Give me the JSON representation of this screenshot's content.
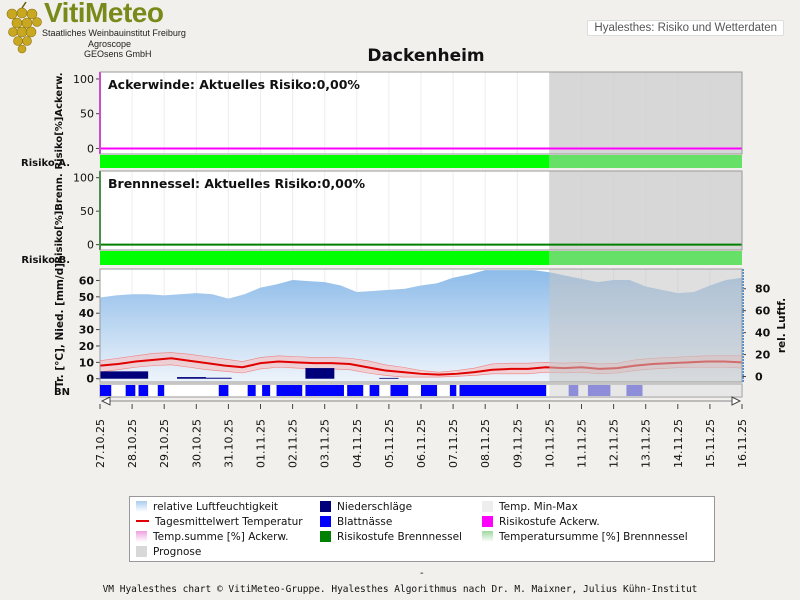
{
  "header": {
    "logo_title": "VitiMeteo",
    "logo_lines": [
      "Staatliches Weinbauinstitut Freiburg",
      "Agroscope",
      "GEOsens GmbH"
    ],
    "badge": "Hyalesthes: Risiko und Wetterdaten"
  },
  "colors": {
    "risk_green": "#00ff00",
    "forecast_green": "#66e066",
    "ackerwinde_magenta": "#ff00ff",
    "brennnessel_green": "#008000",
    "humidity_blue": "#9fc4ec",
    "precip_navy": "#00007a",
    "leafwet_blue": "#0000ff",
    "temp_red": "#e00000",
    "temp_band": "#f6bcbc",
    "forecast_shade": "#d0d0d0"
  },
  "chart_data": {
    "type": "line",
    "title": "Dackenheim",
    "dates": [
      "27.10.25",
      "28.10.25",
      "29.10.25",
      "30.10.25",
      "31.10.25",
      "01.11.25",
      "02.11.25",
      "03.11.25",
      "04.11.25",
      "05.11.25",
      "06.11.25",
      "07.11.25",
      "08.11.25",
      "09.11.25",
      "10.11.25",
      "11.11.25",
      "12.11.25",
      "13.11.25",
      "14.11.25",
      "15.11.25",
      "16.11.25"
    ],
    "forecast_start": "10.11.25",
    "panels": [
      {
        "title": "Ackerwinde: Aktuelles Risiko:0,00%",
        "ylabel": "Risiko[%]Ackerw.",
        "risk_row_label": "Risiko A.",
        "yticks": [
          0,
          50,
          100
        ],
        "ylim": [
          -8,
          110
        ],
        "risk_values": [
          0,
          0,
          0,
          0,
          0,
          0,
          0,
          0,
          0,
          0,
          0,
          0,
          0,
          0,
          0,
          0,
          0,
          0,
          0,
          0,
          0
        ]
      },
      {
        "title": "Brennnessel: Aktuelles Risiko:0,00%",
        "ylabel": "Risiko[%]Brenn.",
        "risk_row_label": "Risiko B.",
        "yticks": [
          0,
          50,
          100
        ],
        "ylim": [
          -8,
          110
        ],
        "risk_values": [
          0,
          0,
          0,
          0,
          0,
          0,
          0,
          0,
          0,
          0,
          0,
          0,
          0,
          0,
          0,
          0,
          0,
          0,
          0,
          0,
          0
        ]
      }
    ],
    "weather": {
      "ylabel_left": "Tr. [°C], Nied. [mm/d]",
      "ylabel_right": "rel. Luftf.",
      "yticks_left": [
        0,
        10,
        20,
        30,
        40,
        50,
        60
      ],
      "ylim_left": [
        -2,
        67
      ],
      "yticks_right": [
        0,
        20,
        40,
        60,
        80
      ],
      "ylim_right": [
        -5,
        98
      ],
      "bn_label": "BN",
      "humidity_x": [
        0.0,
        0.5,
        1.0,
        1.5,
        2.0,
        2.5,
        3.0,
        3.5,
        4.0,
        4.5,
        5.0,
        5.5,
        6.0,
        6.5,
        7.0,
        7.5,
        8.0,
        8.5,
        9.0,
        9.5,
        10.0,
        10.5,
        11.0,
        11.5,
        12.0,
        12.5,
        13.0,
        13.5,
        14.0,
        14.5,
        15.0,
        15.5,
        16.0,
        16.5,
        17.0,
        17.5,
        18.0,
        18.5,
        19.0,
        19.5,
        20.0
      ],
      "humidity": [
        72,
        74,
        75,
        75,
        74,
        75,
        76,
        75,
        71,
        75,
        81,
        84,
        88,
        87,
        86,
        83,
        77,
        78,
        79,
        80,
        83,
        85,
        90,
        93,
        97,
        97,
        97,
        97,
        95,
        92,
        89,
        86,
        88,
        88,
        82,
        79,
        76,
        77,
        83,
        88,
        90
      ],
      "temp_mean": [
        8,
        9,
        10.5,
        11.5,
        12.5,
        11,
        9.5,
        8,
        7,
        9.5,
        10.5,
        10,
        9.5,
        9.5,
        9,
        7,
        5,
        4,
        3,
        2.5,
        3,
        4,
        5.5,
        6,
        6,
        7,
        6.5,
        7,
        6,
        6.5,
        8,
        9,
        9.5,
        10,
        10.5,
        10.5,
        10
      ],
      "temp_x": [
        0.0,
        0.56,
        1.11,
        1.67,
        2.22,
        2.78,
        3.33,
        3.89,
        4.44,
        5.0,
        5.56,
        6.11,
        6.67,
        7.22,
        7.78,
        8.33,
        8.89,
        9.44,
        10.0,
        10.56,
        11.11,
        11.67,
        12.22,
        12.78,
        13.33,
        13.89,
        14.44,
        15.0,
        15.56,
        16.11,
        16.67,
        17.22,
        17.78,
        18.33,
        18.89,
        19.44,
        20.0
      ],
      "temp_max": [
        11,
        12.5,
        14,
        15.5,
        16,
        15,
        13.5,
        12,
        10.5,
        13,
        14,
        13.5,
        13,
        13,
        12.5,
        11,
        8.5,
        7,
        5,
        4,
        5,
        6.5,
        9,
        9.5,
        9.5,
        10,
        9.5,
        10,
        9,
        9.5,
        11.5,
        12.5,
        13,
        13.5,
        14,
        14,
        14
      ],
      "temp_min": [
        4,
        5.5,
        7,
        8,
        8.5,
        7,
        5.5,
        4.5,
        3.5,
        6,
        7,
        6.5,
        6,
        6,
        5.5,
        3.5,
        2,
        1,
        1,
        1,
        1.5,
        2,
        3,
        3,
        3,
        4,
        3.5,
        4,
        3,
        3.5,
        5,
        6,
        6.5,
        7,
        7,
        7,
        6.5
      ],
      "precip": [
        {
          "start": 0.0,
          "end": 1.5,
          "mm": 4.5
        },
        {
          "start": 2.4,
          "end": 3.3,
          "mm": 1.0
        },
        {
          "start": 3.3,
          "end": 4.1,
          "mm": 0.6
        },
        {
          "start": 6.4,
          "end": 7.3,
          "mm": 6.5
        },
        {
          "start": 8.7,
          "end": 9.3,
          "mm": 0.5
        }
      ],
      "leaf_wetness": [
        {
          "start": 0.0,
          "end": 0.35,
          "fc": false
        },
        {
          "start": 0.8,
          "end": 1.1,
          "fc": false
        },
        {
          "start": 1.2,
          "end": 1.5,
          "fc": false
        },
        {
          "start": 1.8,
          "end": 2.0,
          "fc": false
        },
        {
          "start": 3.7,
          "end": 4.0,
          "fc": false
        },
        {
          "start": 4.6,
          "end": 4.85,
          "fc": false
        },
        {
          "start": 5.05,
          "end": 5.3,
          "fc": false
        },
        {
          "start": 5.5,
          "end": 6.3,
          "fc": false
        },
        {
          "start": 6.4,
          "end": 7.6,
          "fc": false
        },
        {
          "start": 7.7,
          "end": 8.2,
          "fc": false
        },
        {
          "start": 8.4,
          "end": 8.7,
          "fc": false
        },
        {
          "start": 9.05,
          "end": 9.6,
          "fc": false
        },
        {
          "start": 10.0,
          "end": 10.5,
          "fc": false
        },
        {
          "start": 10.9,
          "end": 11.1,
          "fc": false
        },
        {
          "start": 11.2,
          "end": 13.9,
          "fc": false
        },
        {
          "start": 14.6,
          "end": 14.9,
          "fc": true
        },
        {
          "start": 15.2,
          "end": 15.9,
          "fc": true
        },
        {
          "start": 16.4,
          "end": 16.9,
          "fc": true
        }
      ]
    }
  },
  "legend": {
    "items": [
      {
        "label": "relative Luftfeuchtigkeit",
        "color": "#a9cdef",
        "kind": "grad"
      },
      {
        "label": "Niederschläge",
        "color": "#00007a",
        "kind": "box"
      },
      {
        "label": "Temp. Min-Max",
        "color": "#eeeeee",
        "kind": "box"
      },
      {
        "label": "Tagesmittelwert Temperatur",
        "color": "#e00000",
        "kind": "line"
      },
      {
        "label": "Blattnässe",
        "color": "#0000ff",
        "kind": "box"
      },
      {
        "label": "Risikostufe Ackerw.",
        "color": "#ff00ff",
        "kind": "box"
      },
      {
        "label": "Temp.summe [%] Ackerw.",
        "color": "#f1a0e0",
        "kind": "grad"
      },
      {
        "label": "Risikostufe Brennnessel",
        "color": "#008000",
        "kind": "box"
      },
      {
        "label": "Temperatursumme [%] Brennnessel",
        "color": "#9fd89f",
        "kind": "grad"
      },
      {
        "label": "Prognose",
        "color": "#d8d8d8",
        "kind": "box"
      }
    ]
  },
  "footer": {
    "dash": "-",
    "credit": "VM Hyalesthes chart © VitiMeteo-Gruppe. Hyalesthes Algorithmus nach Dr. M. Maixner, Julius Kühn-Institut"
  }
}
